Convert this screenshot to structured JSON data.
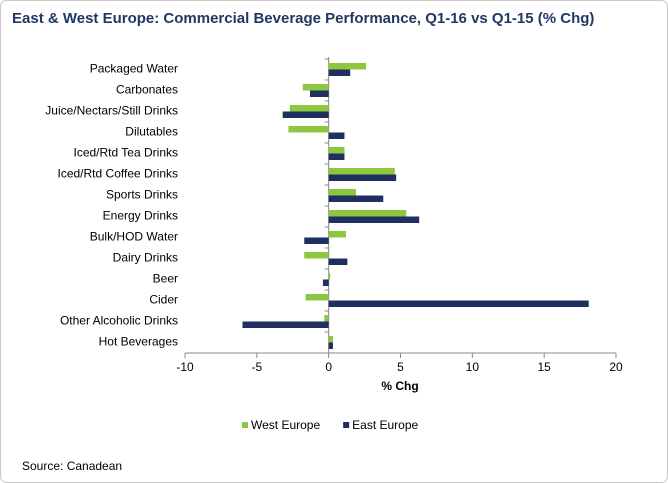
{
  "chart_data": {
    "type": "hbar",
    "title": "East & West Europe: Commercial Beverage Performance, Q1-16 vs Q1-15 (% Chg)",
    "xlabel": "% Chg",
    "source": "Source: Canadean",
    "categories": [
      "Packaged Water",
      "Carbonates",
      "Juice/Nectars/Still Drinks",
      "Dilutables",
      "Iced/Rtd Tea Drinks",
      "Iced/Rtd Coffee Drinks",
      "Sports Drinks",
      "Energy Drinks",
      "Bulk/HOD Water",
      "Dairy Drinks",
      "Beer",
      "Cider",
      "Other Alcoholic Drinks",
      "Hot Beverages"
    ],
    "series": [
      {
        "name": "West Europe",
        "color": "#8dc63f",
        "values": [
          2.6,
          -1.8,
          -2.7,
          -2.8,
          1.1,
          4.6,
          1.9,
          5.4,
          1.2,
          -1.7,
          0.1,
          -1.6,
          -0.3,
          0.3
        ]
      },
      {
        "name": "East Europe",
        "color": "#1f2f5f",
        "values": [
          1.5,
          -1.3,
          -3.2,
          1.1,
          1.1,
          4.7,
          3.8,
          6.3,
          -1.7,
          1.3,
          -0.4,
          18.1,
          -6.0,
          0.3
        ]
      }
    ],
    "xlim": [
      -10,
      20
    ],
    "xticks": [
      -10,
      -5,
      0,
      5,
      10,
      15,
      20
    ],
    "legend": "bottom"
  }
}
